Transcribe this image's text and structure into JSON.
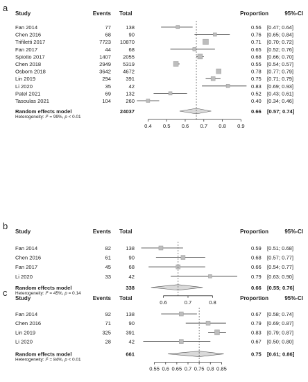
{
  "chart_data": [
    {
      "type": "forest",
      "panel_label": "a",
      "headers": {
        "study": "Study",
        "events": "Events",
        "total": "Total",
        "proportion": "Proportion",
        "ci": "95%-CI"
      },
      "studies": [
        {
          "name": "Fan 2014",
          "events": "77",
          "total": "138",
          "prop_text": "0.56",
          "ci_text": "[0.47; 0.64]",
          "p": 0.56,
          "lo": 0.47,
          "hi": 0.64,
          "w": 5
        },
        {
          "name": "Chen  2016",
          "events": "68",
          "total": "90",
          "prop_text": "0.76",
          "ci_text": "[0.65; 0.84]",
          "p": 0.76,
          "lo": 0.65,
          "hi": 0.84,
          "w": 5
        },
        {
          "name": "Trifiletti 2017",
          "events": "7723",
          "total": "10870",
          "prop_text": "0.71",
          "ci_text": "[0.70; 0.72]",
          "p": 0.71,
          "lo": 0.7,
          "hi": 0.72,
          "w": 8
        },
        {
          "name": "Fan 2017",
          "events": "44",
          "total": "68",
          "prop_text": "0.65",
          "ci_text": "[0.52; 0.76]",
          "p": 0.65,
          "lo": 0.52,
          "hi": 0.76,
          "w": 5
        },
        {
          "name": "Spiotto 2017",
          "events": "1407",
          "total": "2055",
          "prop_text": "0.68",
          "ci_text": "[0.66; 0.70]",
          "p": 0.68,
          "lo": 0.66,
          "hi": 0.7,
          "w": 7
        },
        {
          "name": "Chen 2018",
          "events": "2949",
          "total": "5319",
          "prop_text": "0.55",
          "ci_text": "[0.54; 0.57]",
          "p": 0.55,
          "lo": 0.54,
          "hi": 0.57,
          "w": 7
        },
        {
          "name": "Osborn 2018",
          "events": "3642",
          "total": "4672",
          "prop_text": "0.78",
          "ci_text": "[0.77; 0.79]",
          "p": 0.78,
          "lo": 0.77,
          "hi": 0.79,
          "w": 7
        },
        {
          "name": "Lin 2019",
          "events": "294",
          "total": "391",
          "prop_text": "0.75",
          "ci_text": "[0.71; 0.79]",
          "p": 0.75,
          "lo": 0.71,
          "hi": 0.79,
          "w": 6
        },
        {
          "name": "Li 2020",
          "events": "35",
          "total": "42",
          "prop_text": "0.83",
          "ci_text": "[0.69; 0.93]",
          "p": 0.83,
          "lo": 0.69,
          "hi": 0.93,
          "w": 5
        },
        {
          "name": "Patel 2021",
          "events": "69",
          "total": "132",
          "prop_text": "0.52",
          "ci_text": "[0.43; 0.61]",
          "p": 0.52,
          "lo": 0.43,
          "hi": 0.61,
          "w": 5
        },
        {
          "name": "Tasoulas 2021",
          "events": "104",
          "total": "260",
          "prop_text": "0.40",
          "ci_text": "[0.34; 0.46]",
          "p": 0.4,
          "lo": 0.34,
          "hi": 0.46,
          "w": 5
        }
      ],
      "summary": {
        "label": "Random effects model",
        "total": "24037",
        "prop_text": "0.66",
        "ci_text": "[0.57; 0.74]",
        "p": 0.66,
        "lo": 0.57,
        "hi": 0.74
      },
      "heterogeneity": {
        "prefix": "Heterogeneity: ",
        "i2_sym": "I",
        "i2_rest": " = 99%, ",
        "p_sym": "p",
        "p_rest": " < 0.01"
      },
      "xlim": [
        0.35,
        0.88
      ],
      "ref_line": 0.66,
      "ticks": [
        {
          "v": 0.4,
          "label": "0.4"
        },
        {
          "v": 0.5,
          "label": "0.5"
        },
        {
          "v": 0.6,
          "label": "0.6"
        },
        {
          "v": 0.7,
          "label": "0.7"
        },
        {
          "v": 0.8,
          "label": "0.8"
        },
        {
          "v": 0.9,
          "label": "0.9"
        }
      ]
    },
    {
      "type": "forest",
      "panel_label": "b",
      "headers": {
        "study": "Study",
        "events": "Events",
        "total": "Total",
        "proportion": "Proportion",
        "ci": "95%-CI"
      },
      "studies": [
        {
          "name": "Fan 2014",
          "events": "82",
          "total": "138",
          "prop_text": "0.59",
          "ci_text": "[0.51; 0.68]",
          "p": 0.59,
          "lo": 0.51,
          "hi": 0.68,
          "w": 6
        },
        {
          "name": "Chen  2016",
          "events": "61",
          "total": "90",
          "prop_text": "0.68",
          "ci_text": "[0.57; 0.77]",
          "p": 0.68,
          "lo": 0.57,
          "hi": 0.77,
          "w": 6
        },
        {
          "name": "Fan 2017",
          "events": "45",
          "total": "68",
          "prop_text": "0.66",
          "ci_text": "[0.54; 0.77]",
          "p": 0.66,
          "lo": 0.54,
          "hi": 0.77,
          "w": 6
        },
        {
          "name": "Li 2020",
          "events": "33",
          "total": "42",
          "prop_text": "0.79",
          "ci_text": "[0.63; 0.90]",
          "p": 0.79,
          "lo": 0.63,
          "hi": 0.9,
          "w": 5
        }
      ],
      "summary": {
        "label": "Random effects model",
        "total": "338",
        "prop_text": "0.66",
        "ci_text": "[0.55; 0.76]",
        "p": 0.66,
        "lo": 0.55,
        "hi": 0.76
      },
      "heterogeneity": {
        "prefix": "Heterogeneity: ",
        "i2_sym": "I",
        "i2_rest": " = 45%, ",
        "p_sym": "p",
        "p_rest": " = 0.14"
      },
      "xlim": [
        0.5,
        0.9
      ],
      "ref_line": 0.66,
      "ticks": [
        {
          "v": 0.6,
          "label": "0.6"
        },
        {
          "v": 0.7,
          "label": "0.7"
        },
        {
          "v": 0.8,
          "label": "0.8"
        }
      ]
    },
    {
      "type": "forest",
      "panel_label": "c",
      "headers": {
        "study": "Study",
        "events": "Events",
        "total": "Total",
        "proportion": "Proportion",
        "ci": "95%-CI"
      },
      "studies": [
        {
          "name": "Fan 2014",
          "events": "92",
          "total": "138",
          "prop_text": "0.67",
          "ci_text": "[0.58; 0.74]",
          "p": 0.67,
          "lo": 0.58,
          "hi": 0.74,
          "w": 6
        },
        {
          "name": "Chen  2016",
          "events": "71",
          "total": "90",
          "prop_text": "0.79",
          "ci_text": "[0.69; 0.87]",
          "p": 0.79,
          "lo": 0.69,
          "hi": 0.87,
          "w": 6
        },
        {
          "name": "Lin 2019",
          "events": "325",
          "total": "391",
          "prop_text": "0.83",
          "ci_text": "[0.79; 0.87]",
          "p": 0.83,
          "lo": 0.79,
          "hi": 0.87,
          "w": 7
        },
        {
          "name": "Li 2020",
          "events": "28",
          "total": "42",
          "prop_text": "0.67",
          "ci_text": "[0.50; 0.80]",
          "p": 0.67,
          "lo": 0.5,
          "hi": 0.8,
          "w": 6
        }
      ],
      "summary": {
        "label": "Random effects model",
        "total": "661",
        "prop_text": "0.75",
        "ci_text": "[0.61; 0.86]",
        "p": 0.75,
        "lo": 0.61,
        "hi": 0.86
      },
      "heterogeneity": {
        "prefix": "Heterogeneity: ",
        "i2_sym": "I",
        "i2_rest": " = 84%, ",
        "p_sym": "p",
        "p_rest": " < 0.01"
      },
      "xlim": [
        0.48,
        0.92
      ],
      "ref_line": 0.75,
      "ticks": [
        {
          "v": 0.55,
          "label": "0.55"
        },
        {
          "v": 0.6,
          "label": "0.6"
        },
        {
          "v": 0.65,
          "label": "0.65"
        },
        {
          "v": 0.7,
          "label": "0.7"
        },
        {
          "v": 0.75,
          "label": "0.75"
        },
        {
          "v": 0.8,
          "label": "0.8"
        },
        {
          "v": 0.85,
          "label": "0.85"
        }
      ]
    }
  ]
}
